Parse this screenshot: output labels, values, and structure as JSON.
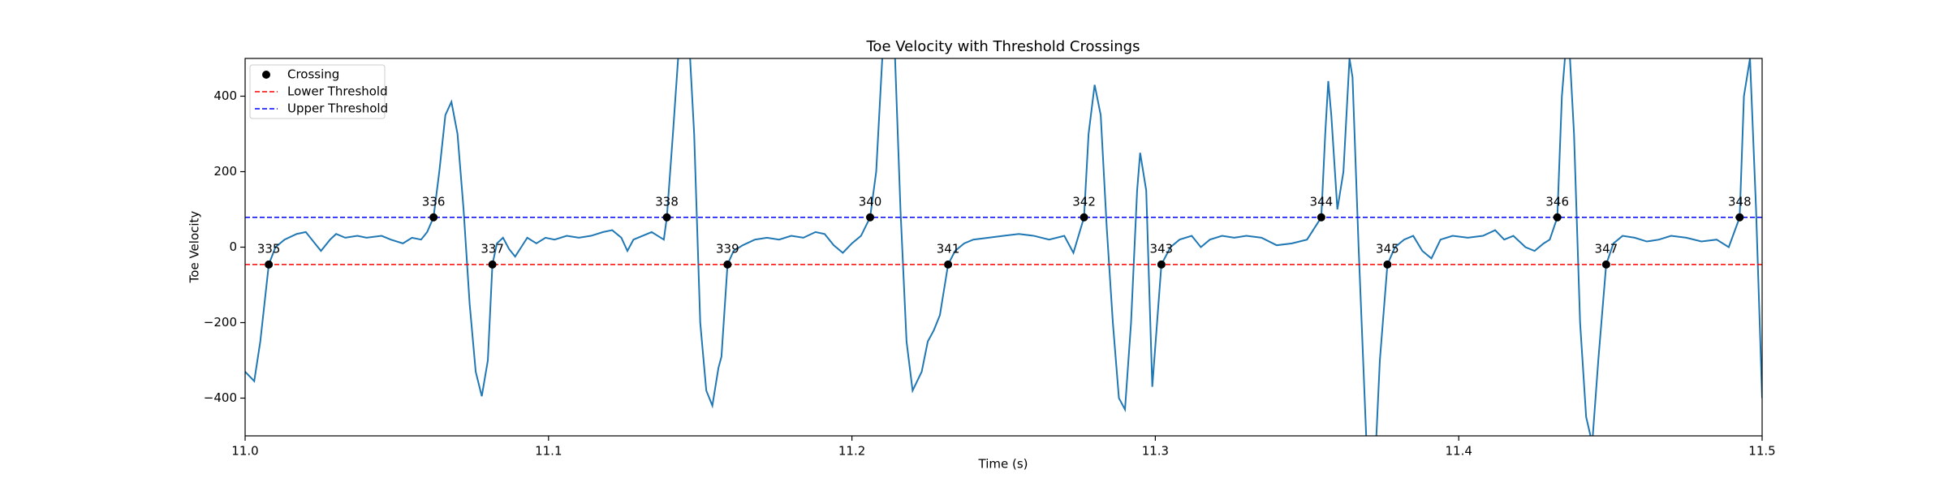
{
  "chart_data": {
    "type": "line",
    "title": "Toe Velocity with Threshold Crossings",
    "xlabel": "Time (s)",
    "ylabel": "Toe Velocity",
    "xlim": [
      11,
      11.5
    ],
    "xticks": [
      {
        "value": 11,
        "label": "11.0"
      },
      11.1,
      11.2,
      11.3,
      11.4,
      11.5
    ],
    "ylim": [
      -500,
      500
    ],
    "yticks": [
      {
        "value": -400,
        "label": "−400"
      },
      {
        "value": -200,
        "label": "−200"
      },
      0,
      200,
      400
    ],
    "grid": false,
    "legend": "upper left",
    "series": [
      {
        "color": "#1f77b4",
        "x": [
          11.0,
          11.003,
          11.005,
          11.0078,
          11.01,
          11.013,
          11.017,
          11.02,
          11.023,
          11.025,
          11.028,
          11.03,
          11.033,
          11.037,
          11.04,
          11.045,
          11.048,
          11.052,
          11.055,
          11.058,
          11.06,
          11.0621,
          11.064,
          11.066,
          11.068,
          11.07,
          11.072,
          11.074,
          11.076,
          11.078,
          11.08,
          11.0815,
          11.083,
          11.085,
          11.087,
          11.089,
          11.091,
          11.093,
          11.096,
          11.099,
          11.102,
          11.106,
          11.11,
          11.114,
          11.118,
          11.121,
          11.124,
          11.126,
          11.128,
          11.131,
          11.134,
          11.136,
          11.138,
          11.139,
          11.141,
          11.144,
          11.146,
          11.148,
          11.15,
          11.152,
          11.154,
          11.156,
          11.157,
          11.159,
          11.161,
          11.164,
          11.168,
          11.172,
          11.176,
          11.18,
          11.184,
          11.188,
          11.191,
          11.194,
          11.197,
          11.2,
          11.203,
          11.206,
          11.208,
          11.21,
          11.212,
          11.214,
          11.216,
          11.218,
          11.22,
          11.223,
          11.225,
          11.227,
          11.229,
          11.2317,
          11.234,
          11.237,
          11.24,
          11.245,
          11.25,
          11.255,
          11.26,
          11.265,
          11.27,
          11.273,
          11.2765,
          11.278,
          11.28,
          11.282,
          11.284,
          11.286,
          11.288,
          11.29,
          11.292,
          11.294,
          11.295,
          11.297,
          11.299,
          11.302,
          11.305,
          11.308,
          11.312,
          11.315,
          11.318,
          11.322,
          11.326,
          11.33,
          11.335,
          11.34,
          11.345,
          11.35,
          11.3547,
          11.356,
          11.357,
          11.358,
          11.36,
          11.362,
          11.364,
          11.365,
          11.367,
          11.369,
          11.37,
          11.372,
          11.374,
          11.3765,
          11.379,
          11.382,
          11.385,
          11.388,
          11.391,
          11.394,
          11.398,
          11.403,
          11.408,
          11.412,
          11.415,
          11.418,
          11.422,
          11.425,
          11.428,
          11.43,
          11.4325,
          11.434,
          11.436,
          11.438,
          11.44,
          11.442,
          11.444,
          11.446,
          11.4486,
          11.451,
          11.454,
          11.458,
          11.462,
          11.466,
          11.47,
          11.475,
          11.48,
          11.485,
          11.489,
          11.4926,
          11.494,
          11.496,
          11.498,
          11.5
        ],
        "values": [
          -330,
          -355,
          -250,
          -46,
          0,
          20,
          35,
          40,
          10,
          -10,
          20,
          35,
          25,
          30,
          25,
          30,
          20,
          10,
          25,
          20,
          40,
          79,
          200,
          350,
          385,
          300,
          100,
          -150,
          -330,
          -395,
          -300,
          -46,
          10,
          25,
          -5,
          -25,
          0,
          25,
          10,
          25,
          20,
          30,
          25,
          30,
          40,
          45,
          25,
          -10,
          20,
          30,
          40,
          30,
          20,
          79,
          300,
          650,
          600,
          300,
          -200,
          -380,
          -420,
          -320,
          -290,
          -46,
          -10,
          5,
          20,
          25,
          20,
          30,
          25,
          40,
          35,
          5,
          -15,
          10,
          30,
          79,
          200,
          500,
          700,
          550,
          100,
          -250,
          -380,
          -330,
          -250,
          -220,
          -180,
          -46,
          -10,
          10,
          20,
          25,
          30,
          35,
          30,
          20,
          30,
          -15,
          79,
          300,
          430,
          350,
          50,
          -200,
          -400,
          -430,
          -200,
          150,
          250,
          150,
          -370,
          -46,
          0,
          20,
          30,
          0,
          20,
          30,
          25,
          30,
          25,
          5,
          10,
          20,
          79,
          300,
          440,
          350,
          100,
          200,
          500,
          450,
          0,
          -400,
          -600,
          -650,
          -300,
          -46,
          0,
          20,
          30,
          -10,
          -30,
          20,
          30,
          25,
          30,
          45,
          20,
          30,
          0,
          -10,
          10,
          20,
          79,
          400,
          600,
          300,
          -200,
          -450,
          -520,
          -300,
          -46,
          10,
          30,
          25,
          15,
          20,
          30,
          25,
          15,
          20,
          0,
          79,
          400,
          500,
          100,
          -400
        ]
      }
    ],
    "thresholds": [
      {
        "name": "Lower Threshold",
        "value": -46,
        "color": "red"
      },
      {
        "name": "Upper Threshold",
        "value": 79,
        "color": "blue"
      }
    ],
    "crossings": {
      "name": "Crossing",
      "color": "black",
      "x": [
        11.0078,
        11.0621,
        11.0815,
        11.139,
        11.159,
        11.206,
        11.2317,
        11.2765,
        11.302,
        11.3547,
        11.3765,
        11.4325,
        11.4486,
        11.4926
      ],
      "values": [
        -46,
        79,
        -46,
        79,
        -46,
        79,
        -46,
        79,
        -46,
        79,
        -46,
        79,
        -46,
        79
      ],
      "labels": [
        335,
        336,
        337,
        338,
        339,
        340,
        341,
        342,
        343,
        344,
        345,
        346,
        347,
        348
      ]
    }
  }
}
